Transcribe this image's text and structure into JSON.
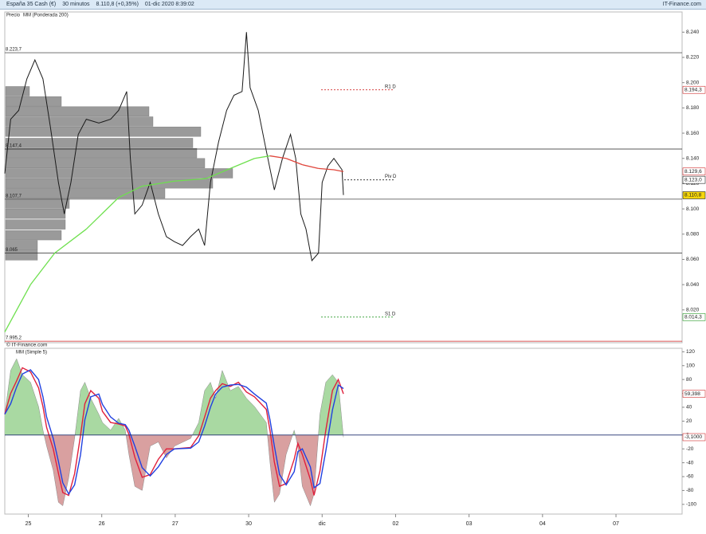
{
  "header": {
    "title": "España 35 Cash (€)",
    "interval": "30 minutos",
    "quote": "8.110,8 (+0,35%)",
    "datetime": "01-dic 2020 8:39:02",
    "brand": "IT-Finance.com"
  },
  "watermark": "© IT-Finance.com",
  "chart_data": [
    {
      "type": "line",
      "x": [
        -0.32,
        -0.24,
        -0.13,
        -0.02,
        0.09,
        0.2,
        0.3,
        0.41,
        0.49,
        0.58,
        0.68,
        0.79,
        0.96,
        1.12,
        1.23,
        1.34,
        1.39,
        1.45,
        1.55,
        1.66,
        1.77,
        1.88,
        1.99,
        2.1,
        2.21,
        2.32,
        2.4,
        2.48,
        2.59,
        2.7,
        2.8,
        2.91,
        2.97,
        3.02,
        3.13,
        3.24,
        3.35,
        3.46,
        3.57,
        3.64,
        3.71,
        3.78,
        3.86,
        3.95,
        4.0,
        4.08,
        4.16,
        4.27,
        4.29
      ],
      "xlim": [
        -0.32,
        8.9
      ],
      "ylim": [
        7994,
        8256
      ],
      "yticks": [
        {
          "value": 8240,
          "label": "8.240"
        },
        {
          "value": 8220,
          "label": "8.220"
        },
        {
          "value": 8200,
          "label": "8.200"
        },
        {
          "value": 8180,
          "label": "8.180"
        },
        {
          "value": 8160,
          "label": "8.160"
        },
        {
          "value": 8140,
          "label": "8.140"
        },
        {
          "value": 8120,
          "label": "8.120"
        },
        {
          "value": 8100,
          "label": "8.100"
        },
        {
          "value": 8080,
          "label": "8.080"
        },
        {
          "value": 8060,
          "label": "8.060"
        },
        {
          "value": 8040,
          "label": "8.040"
        },
        {
          "value": 8020,
          "label": "8.020"
        }
      ],
      "series": [
        {
          "name": "Precio",
          "color": "#1a1a1a",
          "values": [
            8128,
            8171,
            8178,
            8203,
            8218,
            8203,
            8165,
            8121,
            8096,
            8121,
            8159,
            8171,
            8168,
            8171,
            8178,
            8193,
            8140,
            8096,
            8103,
            8121,
            8096,
            8078,
            8074,
            8071,
            8078,
            8084,
            8071,
            8121,
            8153,
            8178,
            8190,
            8193,
            8240,
            8196,
            8178,
            8146,
            8115,
            8140,
            8159,
            8140,
            8096,
            8084,
            8059,
            8065,
            8121,
            8134,
            8140,
            8131,
            8111
          ]
        },
        {
          "name": "MM (Ponderada 200)",
          "color": "#6ee04e",
          "color_down": "#e0463c",
          "x": [
            -0.32,
            0.03,
            0.36,
            0.79,
            1.23,
            1.55,
            1.99,
            2.42,
            2.75,
            3.08,
            3.29,
            3.51,
            3.73,
            3.95,
            4.16,
            4.29
          ],
          "values": [
            8002.5,
            8040,
            8065,
            8084,
            8109,
            8118,
            8122,
            8124,
            8132,
            8140,
            8142,
            8140,
            8135,
            8132,
            8131,
            8129.6
          ]
        }
      ],
      "profile": {
        "color": "#9a9a9a",
        "levels": [
          8193,
          8185,
          8177,
          8169,
          8161,
          8152,
          8144,
          8136,
          8128,
          8120,
          8112,
          8104,
          8096,
          8087.5,
          8079,
          8071,
          8063
        ],
        "values": [
          30,
          70,
          180,
          185,
          245,
          235,
          240,
          250,
          285,
          260,
          200,
          80,
          75,
          75,
          70,
          40,
          40
        ]
      },
      "levels": [
        {
          "value": 8223.7,
          "label": "8.223,7",
          "color": "#444444"
        },
        {
          "value": 8147.4,
          "label": "8.147,4",
          "color": "#222222"
        },
        {
          "value": 8107.7,
          "label": "8.107,7",
          "color": "#444444"
        },
        {
          "value": 8065,
          "label": "8.065",
          "color": "#444444"
        },
        {
          "value": 7995.2,
          "label": "7.995,2",
          "color": "#d02020"
        }
      ],
      "pivots": [
        {
          "name": "R1 D",
          "value": 8194.3,
          "color": "#d02c2c"
        },
        {
          "name": "Piv D",
          "value": 8123,
          "color": "#222222"
        },
        {
          "name": "S1 D",
          "value": 8014.3,
          "color": "#2a9a2a"
        }
      ],
      "tags": [
        {
          "value": 8194.3,
          "label": "8.194,3",
          "color": "#d02c2c",
          "background": "#ffffff"
        },
        {
          "value": 8129.6,
          "label": "8.129,6",
          "color": "#d02c2c",
          "background": "#ffffff"
        },
        {
          "value": 8123,
          "label": "8.123,0",
          "color": "#222222",
          "background": "#ffffff"
        },
        {
          "value": 8110.8,
          "label": "8.110,8",
          "color": "#222222",
          "background": "#f5d60a"
        },
        {
          "value": 8014.3,
          "label": "8.014,3",
          "color": "#2a9a2a",
          "background": "#ffffff"
        }
      ]
    },
    {
      "type": "area",
      "x": [
        -0.32,
        -0.24,
        -0.16,
        -0.08,
        0.03,
        0.14,
        0.2,
        0.25,
        0.34,
        0.41,
        0.47,
        0.55,
        0.63,
        0.71,
        0.77,
        0.85,
        0.96,
        1.01,
        1.12,
        1.23,
        1.32,
        1.37,
        1.45,
        1.55,
        1.66,
        1.77,
        1.88,
        1.99,
        2.21,
        2.32,
        2.4,
        2.48,
        2.55,
        2.64,
        2.75,
        2.86,
        2.97,
        3.08,
        3.24,
        3.29,
        3.35,
        3.42,
        3.51,
        3.62,
        3.67,
        3.73,
        3.84,
        3.89,
        3.97,
        4.05,
        4.14,
        4.22,
        4.29
      ],
      "xlim": [
        -0.32,
        8.9
      ],
      "xticks": [
        {
          "value": 0,
          "label": "25"
        },
        {
          "value": 1,
          "label": "26"
        },
        {
          "value": 2,
          "label": "27"
        },
        {
          "value": 3,
          "label": "30"
        },
        {
          "value": 4,
          "label": "dic"
        },
        {
          "value": 5,
          "label": "02"
        },
        {
          "value": 6,
          "label": "03"
        },
        {
          "value": 7,
          "label": "04"
        },
        {
          "value": 8,
          "label": "07"
        }
      ],
      "ylim": [
        -114,
        125
      ],
      "yticks": [
        120,
        100,
        80,
        60,
        40,
        20,
        0,
        -20,
        -40,
        -60,
        -80,
        -100
      ],
      "series": [
        {
          "color_up": "#a9d9a2",
          "color_down": "#d9a0a0",
          "values": [
            30,
            93,
            110,
            87,
            76,
            41,
            7,
            -16,
            -51,
            -97,
            -102,
            -62,
            -5,
            64,
            76,
            53,
            30,
            18,
            7,
            24,
            7,
            -28,
            -74,
            -80,
            -16,
            -10,
            -33,
            -16,
            -5,
            18,
            64,
            76,
            53,
            93,
            64,
            70,
            53,
            41,
            18,
            -39,
            -97,
            -85,
            -28,
            7,
            -16,
            -74,
            -102,
            -85,
            30,
            76,
            87,
            76,
            -3.1
          ]
        },
        {
          "name": "MM (Simple 5)",
          "color": "#e0203c",
          "values": [
            30,
            60,
            78,
            97,
            91,
            68,
            41,
            11,
            -20,
            -55,
            -83,
            -87,
            -56,
            -1,
            45,
            64,
            53,
            34,
            18,
            16,
            13,
            1,
            -32,
            -61,
            -57,
            -35,
            -20,
            -20,
            -18,
            -1,
            26,
            53,
            64,
            74,
            70,
            76,
            62,
            55,
            37,
            7,
            -39,
            -74,
            -70,
            -35,
            -12,
            -28,
            -64,
            -87,
            -52,
            7,
            64,
            80,
            59.398
          ]
        },
        {
          "color": "#2040e0",
          "values": [
            30,
            45,
            69,
            88,
            94,
            80,
            55,
            26,
            -5,
            -38,
            -69,
            -85,
            -72,
            -29,
            22,
            55,
            59,
            44,
            26,
            17,
            15,
            7,
            -16,
            -47,
            -59,
            -46,
            -28,
            -20,
            -19,
            -10,
            13,
            40,
            59,
            69,
            72,
            73,
            69,
            59,
            46,
            22,
            -16,
            -57,
            -72,
            -53,
            -24,
            -20,
            -46,
            -76,
            -70,
            -23,
            36,
            72,
            67
          ]
        }
      ],
      "tags": [
        {
          "value": 59.398,
          "label": "59,398",
          "color": "#d02c2c",
          "background": "#ffffff"
        },
        {
          "value": -3.1,
          "label": "-3,1000",
          "color": "#d02c2c",
          "background": "#ffffff"
        }
      ]
    }
  ]
}
